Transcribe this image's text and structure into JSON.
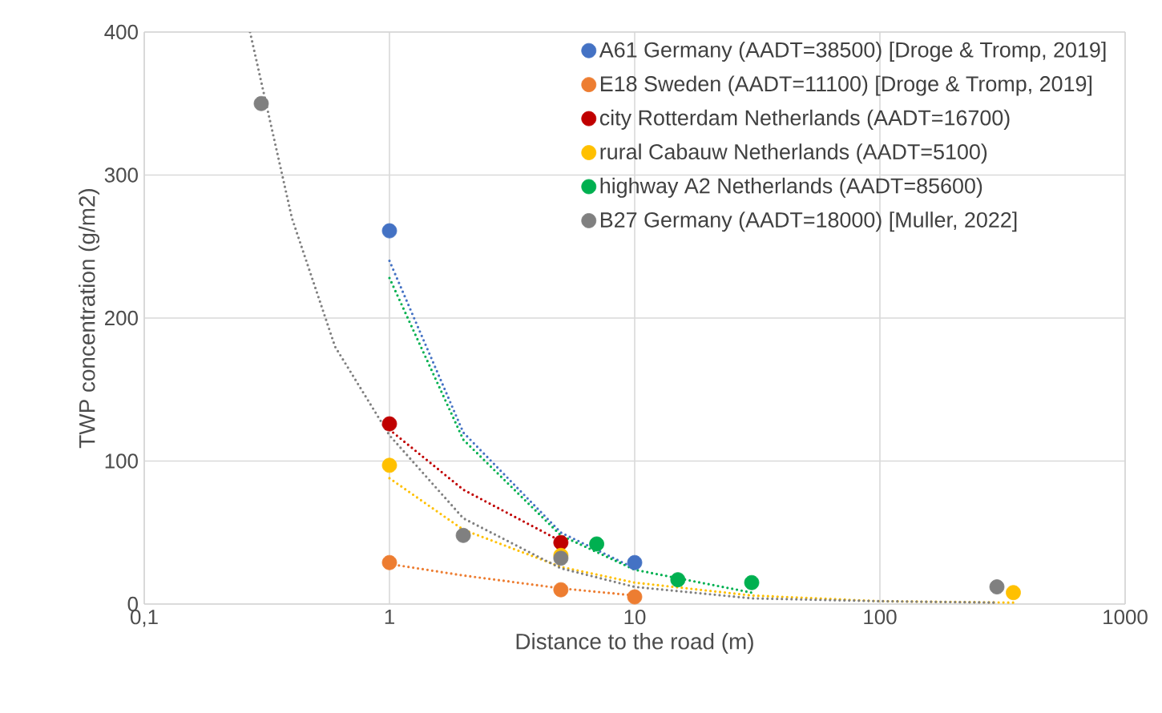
{
  "chart_data": {
    "type": "scatter",
    "xlabel": "Distance to the road (m)",
    "ylabel": "TWP concentration (g/m2)",
    "log": "x",
    "xlim": [
      0.1,
      1000
    ],
    "xticks": [
      {
        "value": 0.1,
        "label": "0,1"
      },
      1,
      10,
      100,
      1000
    ],
    "ylim": [
      0,
      400
    ],
    "yticks": [
      0,
      100,
      200,
      300,
      400
    ],
    "grid": true,
    "legend": "top right",
    "series": [
      {
        "name": "A61 Germany (AADT=38500) [Droge & Tromp, 2019]",
        "marker": "circle",
        "color": "#4472c4",
        "x": [
          1,
          10
        ],
        "values": [
          261,
          29
        ]
      },
      {
        "name": "E18 Sweden (AADT=11100) [Droge & Tromp, 2019]",
        "marker": "circle",
        "color": "#ed7d31",
        "x": [
          1,
          5,
          10
        ],
        "values": [
          29,
          10,
          5
        ]
      },
      {
        "name": "city Rotterdam Netherlands (AADT=16700)",
        "marker": "circle",
        "color": "#c00000",
        "x": [
          1,
          5
        ],
        "values": [
          126,
          43
        ]
      },
      {
        "name": "rural Cabauw Netherlands (AADT=5100)",
        "marker": "circle",
        "color": "#ffc000",
        "x": [
          1,
          5,
          350
        ],
        "values": [
          97,
          34,
          8
        ]
      },
      {
        "name": "highway A2 Netherlands (AADT=85600)",
        "marker": "circle",
        "color": "#00b050",
        "x": [
          7,
          15,
          30
        ],
        "values": [
          42,
          17,
          15
        ]
      },
      {
        "name": "B27 Germany (AADT=18000) [Muller, 2022]",
        "marker": "circle",
        "color": "#808080",
        "x": [
          0.3,
          2,
          5,
          300
        ],
        "values": [
          350,
          48,
          32,
          12
        ]
      },
      {
        "type": "line",
        "line_style": "dotted",
        "marker": "none",
        "color": "#4472c4",
        "x": [
          1,
          2,
          5,
          10
        ],
        "values": [
          240,
          120,
          50,
          25
        ]
      },
      {
        "type": "line",
        "line_style": "dotted",
        "marker": "none",
        "color": "#ed7d31",
        "x": [
          1,
          2,
          5,
          10
        ],
        "values": [
          28,
          20,
          11,
          6
        ]
      },
      {
        "type": "line",
        "line_style": "dotted",
        "marker": "none",
        "color": "#c00000",
        "x": [
          1,
          2,
          5
        ],
        "values": [
          122,
          80,
          44
        ]
      },
      {
        "type": "line",
        "line_style": "dotted",
        "marker": "none",
        "color": "#ffc000",
        "x": [
          1,
          2,
          5,
          10,
          30,
          100,
          350
        ],
        "values": [
          88,
          52,
          26,
          15,
          6,
          2,
          1
        ]
      },
      {
        "type": "line",
        "line_style": "dotted",
        "marker": "none",
        "color": "#00b050",
        "x": [
          1,
          2,
          5,
          10,
          30
        ],
        "values": [
          228,
          115,
          48,
          24,
          8
        ]
      },
      {
        "type": "line",
        "line_style": "dotted",
        "marker": "none",
        "color": "#808080",
        "x": [
          0.27,
          0.4,
          0.6,
          1,
          2,
          5,
          10,
          30,
          100,
          300
        ],
        "values": [
          400,
          270,
          180,
          118,
          60,
          25,
          12,
          4,
          2,
          1
        ]
      }
    ]
  }
}
